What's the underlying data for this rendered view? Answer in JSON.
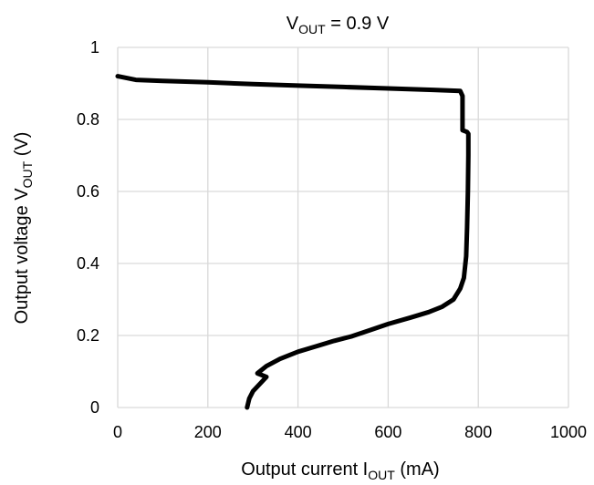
{
  "chart_data": {
    "type": "line",
    "title": {
      "main": "V",
      "sub": "OUT",
      "rest": " = 0.9 V"
    },
    "xlabel": {
      "main": "Output current I",
      "sub": "OUT",
      "rest": " (mA)"
    },
    "ylabel": {
      "main": "Output voltage V",
      "sub": "OUT",
      "rest": " (V)"
    },
    "xlim": [
      0,
      1000
    ],
    "ylim": [
      0,
      1
    ],
    "xticks": [
      0,
      200,
      400,
      600,
      800,
      1000
    ],
    "yticks": [
      0,
      0.2,
      0.4,
      0.6,
      0.8,
      1
    ],
    "xtick_labels": [
      "0",
      "200",
      "400",
      "600",
      "800",
      "1000"
    ],
    "ytick_labels": [
      "0",
      "0.2",
      "0.4",
      "0.6",
      "0.8",
      "1"
    ],
    "grid": true,
    "line_color": "#000000",
    "grid_color": "#d9d9d9",
    "series": [
      {
        "points": [
          [
            0,
            0.92
          ],
          [
            20,
            0.915
          ],
          [
            40,
            0.91
          ],
          [
            100,
            0.907
          ],
          [
            200,
            0.903
          ],
          [
            300,
            0.898
          ],
          [
            400,
            0.894
          ],
          [
            500,
            0.89
          ],
          [
            600,
            0.886
          ],
          [
            700,
            0.882
          ],
          [
            760,
            0.879
          ],
          [
            765,
            0.865
          ],
          [
            765,
            0.77
          ],
          [
            775,
            0.765
          ],
          [
            778,
            0.76
          ],
          [
            778,
            0.7
          ],
          [
            777,
            0.6
          ],
          [
            775,
            0.5
          ],
          [
            773,
            0.42
          ],
          [
            768,
            0.36
          ],
          [
            760,
            0.33
          ],
          [
            745,
            0.3
          ],
          [
            720,
            0.28
          ],
          [
            690,
            0.265
          ],
          [
            650,
            0.25
          ],
          [
            600,
            0.232
          ],
          [
            560,
            0.215
          ],
          [
            520,
            0.198
          ],
          [
            480,
            0.185
          ],
          [
            440,
            0.17
          ],
          [
            400,
            0.155
          ],
          [
            360,
            0.135
          ],
          [
            330,
            0.115
          ],
          [
            310,
            0.095
          ],
          [
            330,
            0.085
          ],
          [
            315,
            0.065
          ],
          [
            300,
            0.045
          ],
          [
            292,
            0.025
          ],
          [
            287,
            0
          ]
        ]
      }
    ]
  }
}
